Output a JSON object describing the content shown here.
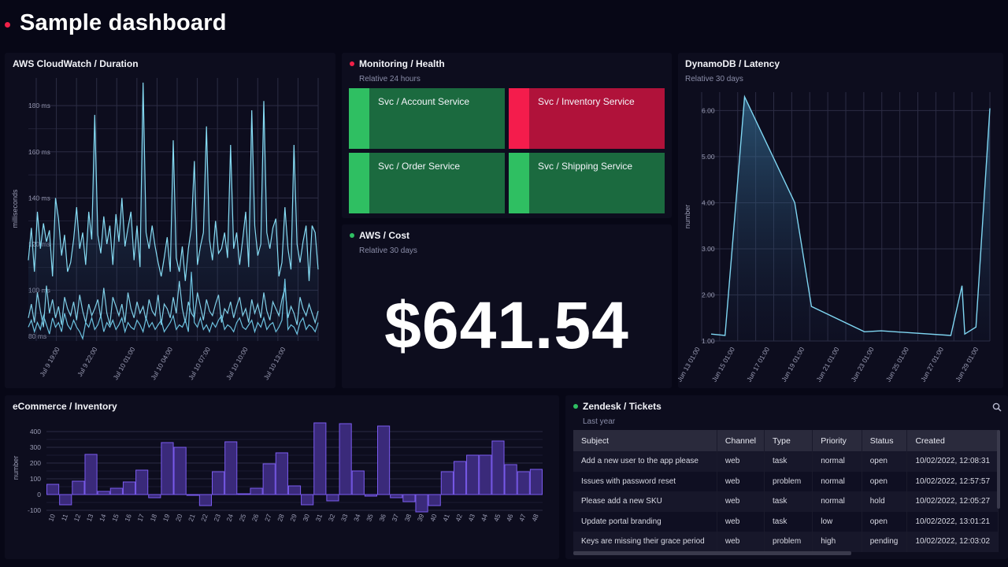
{
  "header": {
    "title": "Sample dashboard"
  },
  "colors": {
    "accent_red": "#f02048",
    "ok_green": "#2fbf62",
    "tile_green": "#1b6a3f",
    "tile_red": "#b0123a",
    "line": "#7fd6f2",
    "bar": "#7b5cf0"
  },
  "cloudwatch": {
    "title": "AWS CloudWatch / Duration",
    "chart_data": {
      "type": "line",
      "ylabel": "milliseconds",
      "y_ticks": [
        "80 ms",
        "100 ms",
        "120 ms",
        "140 ms",
        "160 ms",
        "180 ms"
      ],
      "x_ticks": [
        "Jul 9 19:00",
        "Jul 9 22:00",
        "Jul 10 01:00",
        "Jul 10 04:00",
        "Jul 10 07:00",
        "Jul 10 10:00",
        "Jul 10 13:00"
      ],
      "ylim": [
        78,
        192
      ],
      "series": [
        {
          "values": [
            113,
            127,
            108,
            134,
            118,
            129,
            121,
            126,
            106,
            140,
            131,
            115,
            124,
            108,
            112,
            122,
            136,
            118,
            125,
            111,
            134,
            122,
            176,
            124,
            116,
            132,
            120,
            128,
            111,
            133,
            121,
            140,
            119,
            127,
            134,
            113,
            128,
            110,
            190,
            125,
            118,
            128,
            119,
            112,
            106,
            114,
            123,
            108,
            165,
            114,
            108,
            119,
            104,
            118,
            127,
            156,
            111,
            119,
            125,
            171,
            122,
            113,
            130,
            116,
            118,
            125,
            114,
            163,
            118,
            125,
            111,
            122,
            134,
            110,
            178,
            128,
            115,
            120,
            182,
            125,
            118,
            127,
            131,
            106,
            112,
            136,
            118,
            109,
            163,
            120,
            112,
            121,
            128,
            104,
            128,
            125,
            109
          ]
        },
        {
          "values": [
            88,
            94,
            86,
            99,
            91,
            84,
            102,
            90,
            96,
            88,
            93,
            85,
            97,
            92,
            89,
            95,
            87,
            98,
            91,
            86,
            94,
            89,
            92,
            96,
            88,
            101,
            90,
            85,
            97,
            93,
            89,
            94,
            86,
            99,
            92,
            88,
            95,
            90,
            93,
            87,
            96,
            91,
            89,
            98,
            85,
            94,
            92,
            88,
            97,
            90,
            104,
            92,
            86,
            95,
            90,
            88,
            99,
            93,
            87,
            96,
            91,
            89,
            94,
            98,
            86,
            92,
            90,
            95,
            88,
            93,
            97,
            89,
            92,
            86,
            96,
            90,
            94,
            88,
            99,
            91,
            87,
            95,
            92,
            89,
            96,
            101,
            88,
            93,
            90,
            85,
            97,
            92,
            89,
            94,
            90,
            86,
            91
          ]
        },
        {
          "values": [
            84,
            87,
            82,
            86,
            83,
            89,
            85,
            81,
            88,
            84,
            86,
            82,
            90,
            85,
            83,
            87,
            84,
            82,
            79,
            86,
            84,
            88,
            83,
            85,
            89,
            82,
            86,
            84,
            87,
            83,
            85,
            88,
            82,
            86,
            84,
            83,
            87,
            85,
            82,
            88,
            84,
            86,
            83,
            85,
            87,
            82,
            84,
            86,
            89,
            83,
            85,
            84,
            87,
            82,
            108,
            86,
            84,
            88,
            83,
            85,
            82,
            86,
            84,
            87,
            89,
            83,
            85,
            84,
            82,
            86,
            88,
            84,
            83,
            85,
            87,
            82,
            86,
            84,
            88,
            83,
            85,
            86,
            82,
            84,
            87,
            105,
            83,
            85,
            84,
            81,
            86,
            88,
            83,
            85,
            84,
            82,
            86
          ]
        }
      ]
    }
  },
  "health": {
    "title": "Monitoring / Health",
    "subtitle": "Relative 24 hours",
    "tiles": [
      {
        "label": "Svc / Account Service",
        "status": "ok"
      },
      {
        "label": "Svc / Inventory Service",
        "status": "error"
      },
      {
        "label": "Svc / Order Service",
        "status": "ok"
      },
      {
        "label": "Svc / Shipping Service",
        "status": "ok"
      }
    ]
  },
  "cost": {
    "title": "AWS / Cost",
    "subtitle": "Relative 30 days",
    "value": "$641.54"
  },
  "dynamo": {
    "title": "DynamoDB / Latency",
    "subtitle": "Relative 30 days",
    "chart_data": {
      "type": "area",
      "ylabel": "number",
      "y_ticks": [
        "1.00",
        "2.00",
        "3.00",
        "4.00",
        "5.00",
        "6.00"
      ],
      "x_ticks": [
        "Jun 13 01:00",
        "Jun 15 01:00",
        "Jun 17 01:00",
        "Jun 19 01:00",
        "Jun 21 01:00",
        "Jun 23 01:00",
        "Jun 25 01:00",
        "Jun 27 01:00",
        "Jun 29 01:00"
      ],
      "ylim": [
        1,
        6.4
      ],
      "x": [
        0,
        0.05,
        0.12,
        0.3,
        0.36,
        0.55,
        0.61,
        0.86,
        0.9,
        0.91,
        0.95,
        1.0
      ],
      "values": [
        1.15,
        1.12,
        6.3,
        4.0,
        1.75,
        1.2,
        1.22,
        1.12,
        2.2,
        1.15,
        1.3,
        6.05
      ]
    }
  },
  "inventory": {
    "title": "eCommerce / Inventory",
    "chart_data": {
      "type": "bar",
      "ylabel": "number",
      "ylim": [
        -100,
        450
      ],
      "y_ticks": [
        "-100",
        "0",
        "100",
        "200",
        "300",
        "400"
      ],
      "categories": [
        "10",
        "11",
        "12",
        "13",
        "14",
        "15",
        "16",
        "17",
        "18",
        "19",
        "20",
        "21",
        "22",
        "23",
        "24",
        "25",
        "26",
        "27",
        "28",
        "29",
        "30",
        "31",
        "32",
        "33",
        "34",
        "35",
        "36",
        "37",
        "38",
        "39",
        "40",
        "41",
        "42",
        "43",
        "44",
        "45",
        "46",
        "47",
        "48"
      ],
      "values": [
        65,
        -65,
        85,
        255,
        20,
        40,
        80,
        155,
        -20,
        330,
        300,
        -5,
        -70,
        145,
        335,
        5,
        40,
        195,
        265,
        55,
        -65,
        455,
        -40,
        450,
        150,
        -10,
        435,
        -20,
        -45,
        -110,
        -70,
        145,
        210,
        250,
        250,
        340,
        190,
        145,
        160
      ]
    }
  },
  "tickets": {
    "title": "Zendesk / Tickets",
    "subtitle": "Last year",
    "columns": [
      "Subject",
      "Channel",
      "Type",
      "Priority",
      "Status",
      "Created"
    ],
    "rows": [
      [
        "Add a new user to the app please",
        "web",
        "task",
        "normal",
        "open",
        "10/02/2022, 12:08:31"
      ],
      [
        "Issues with password reset",
        "web",
        "problem",
        "normal",
        "open",
        "10/02/2022, 12:57:57"
      ],
      [
        "Please add a new SKU",
        "web",
        "task",
        "normal",
        "hold",
        "10/02/2022, 12:05:27"
      ],
      [
        "Update portal branding",
        "web",
        "task",
        "low",
        "open",
        "10/02/2022, 13:01:21"
      ],
      [
        "Keys are missing their grace period",
        "web",
        "problem",
        "high",
        "pending",
        "10/02/2022, 12:03:02"
      ]
    ]
  }
}
